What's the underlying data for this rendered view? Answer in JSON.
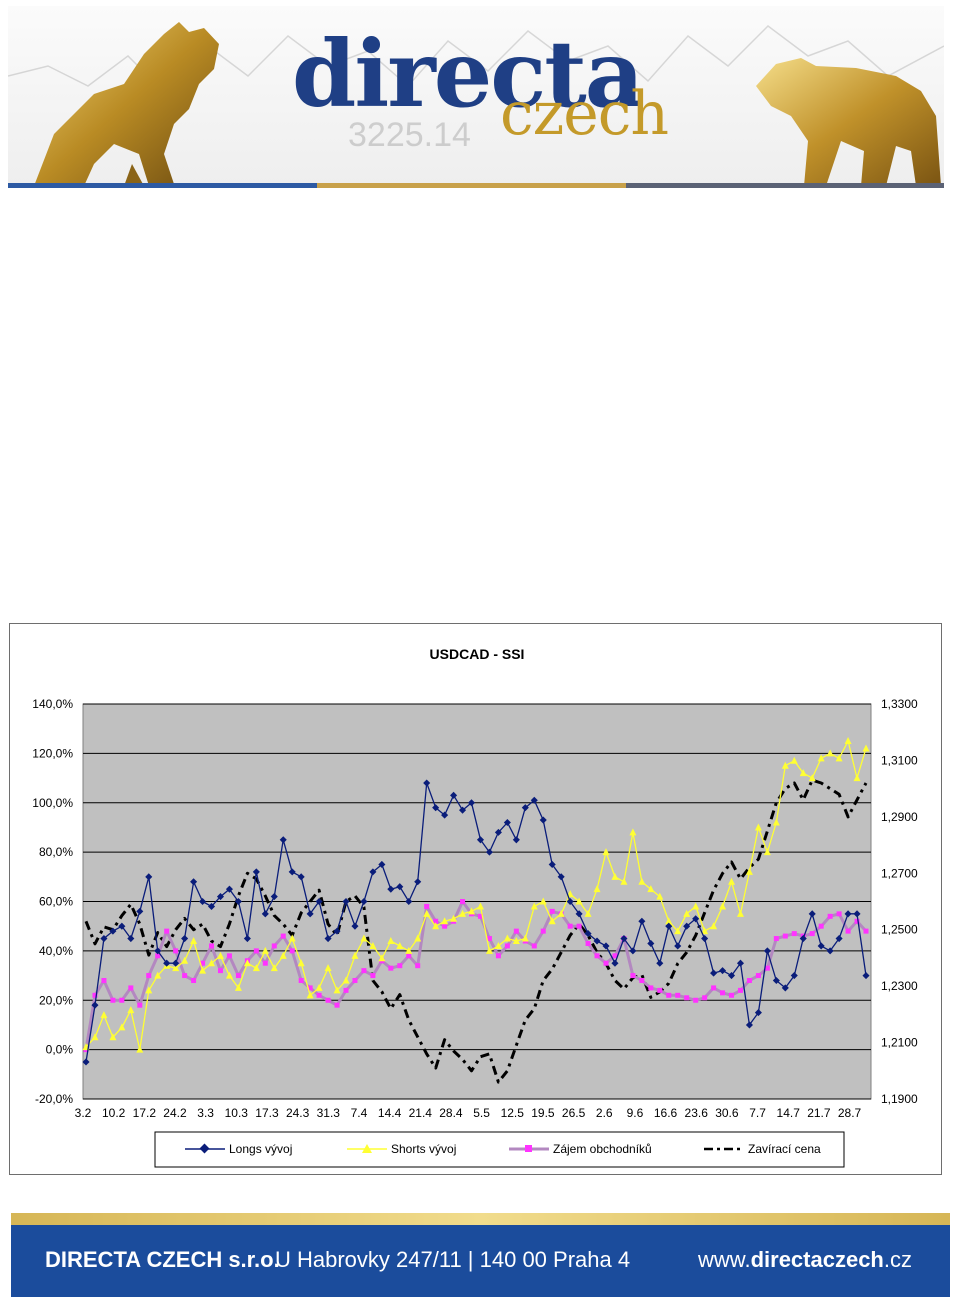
{
  "header": {
    "brand_top": "directa",
    "brand_bottom": "czech",
    "ticker_value": "3225.14"
  },
  "colors": {
    "brand_blue": "#1f3f85",
    "brand_gold": "#c49a2a",
    "footer_blue": "#1b4c9c",
    "plot_bg": "#c0c0c0",
    "longs": "#0a1d7a",
    "shorts": "#ffff33",
    "interest": "#ff33ff",
    "close": "#000000"
  },
  "chart_data": {
    "type": "line",
    "title": "USDCAD - SSI",
    "xlabel": "",
    "ylabel": "",
    "grid": true,
    "legend_position": "bottom",
    "y_left": {
      "ylim": [
        -20,
        140
      ],
      "ticks": [
        "-20,0%",
        "0,0%",
        "20,0%",
        "40,0%",
        "60,0%",
        "80,0%",
        "100,0%",
        "120,0%",
        "140,0%"
      ]
    },
    "y_right": {
      "ylim": [
        1.19,
        1.33
      ],
      "ticks": [
        "1,1900",
        "1,2100",
        "1,2300",
        "1,2500",
        "1,2700",
        "1,2900",
        "1,3100",
        "1,3300"
      ]
    },
    "x_tick_labels": [
      "3.2",
      "10.2",
      "17.2",
      "24.2",
      "3.3",
      "10.3",
      "17.3",
      "24.3",
      "31.3",
      "7.4",
      "14.4",
      "21.4",
      "28.4",
      "5.5",
      "12.5",
      "19.5",
      "26.5",
      "2.6",
      "9.6",
      "16.6",
      "23.6",
      "30.6",
      "7.7",
      "14.7",
      "21.7",
      "28.7"
    ],
    "series": [
      {
        "name": "Longs vývoj",
        "axis": "left",
        "marker": "diamond",
        "values": [
          -5,
          18,
          45,
          48,
          50,
          45,
          56,
          70,
          40,
          35,
          35,
          45,
          68,
          60,
          58,
          62,
          65,
          60,
          45,
          72,
          55,
          62,
          85,
          72,
          70,
          55,
          60,
          45,
          48,
          60,
          50,
          60,
          72,
          75,
          65,
          66,
          60,
          68,
          108,
          98,
          95,
          103,
          97,
          100,
          85,
          80,
          88,
          92,
          85,
          98,
          101,
          93,
          75,
          70,
          60,
          55,
          47,
          44,
          42,
          35,
          45,
          40,
          52,
          43,
          35,
          50,
          42,
          50,
          53,
          45,
          31,
          32,
          30,
          35,
          10,
          15,
          40,
          28,
          25,
          30,
          45,
          55,
          42,
          40,
          45,
          55,
          55,
          30
        ]
      },
      {
        "name": "Shorts vývoj",
        "axis": "left",
        "marker": "triangle",
        "values": [
          1,
          5,
          14,
          5,
          9,
          16,
          0,
          24,
          30,
          34,
          33,
          36,
          44,
          32,
          35,
          38,
          30,
          25,
          35,
          33,
          40,
          33,
          38,
          45,
          35,
          22,
          25,
          33,
          24,
          28,
          38,
          45,
          42,
          37,
          44,
          42,
          40,
          45,
          55,
          50,
          52,
          53,
          55,
          56,
          58,
          40,
          42,
          45,
          44,
          45,
          58,
          60,
          52,
          55,
          63,
          60,
          55,
          65,
          80,
          70,
          68,
          88,
          68,
          65,
          62,
          52,
          48,
          55,
          58,
          48,
          50,
          58,
          68,
          55,
          72,
          90,
          80,
          92,
          115,
          117,
          112,
          110,
          118,
          120,
          118,
          125,
          110,
          122
        ]
      },
      {
        "name": "Zájem obchodníků",
        "axis": "left",
        "marker": "square",
        "values": [
          0,
          22,
          28,
          20,
          20,
          25,
          18,
          30,
          38,
          48,
          40,
          30,
          28,
          35,
          42,
          32,
          38,
          30,
          36,
          40,
          35,
          42,
          46,
          40,
          28,
          25,
          22,
          20,
          18,
          24,
          28,
          32,
          30,
          36,
          33,
          34,
          38,
          34,
          58,
          52,
          50,
          52,
          60,
          55,
          54,
          45,
          38,
          42,
          48,
          44,
          42,
          48,
          56,
          55,
          50,
          50,
          43,
          38,
          35,
          38,
          45,
          30,
          28,
          25,
          24,
          22,
          22,
          21,
          20,
          21,
          25,
          23,
          22,
          24,
          28,
          30,
          33,
          45,
          46,
          47,
          46,
          47,
          50,
          54,
          55,
          48,
          52,
          48
        ]
      },
      {
        "name": "Zavírací cena",
        "axis": "right",
        "marker": "dash",
        "values": [
          1.253,
          1.245,
          1.251,
          1.25,
          1.255,
          1.259,
          1.252,
          1.241,
          1.249,
          1.244,
          1.25,
          1.254,
          1.25,
          1.252,
          1.246,
          1.244,
          1.252,
          1.262,
          1.27,
          1.268,
          1.262,
          1.255,
          1.252,
          1.248,
          1.256,
          1.26,
          1.264,
          1.252,
          1.248,
          1.26,
          1.262,
          1.258,
          1.232,
          1.228,
          1.222,
          1.227,
          1.218,
          1.212,
          1.206,
          1.201,
          1.211,
          1.207,
          1.204,
          1.2,
          1.205,
          1.206,
          1.196,
          1.2,
          1.209,
          1.218,
          1.222,
          1.232,
          1.236,
          1.242,
          1.248,
          1.252,
          1.248,
          1.242,
          1.238,
          1.232,
          1.229,
          1.233,
          1.234,
          1.226,
          1.228,
          1.231,
          1.238,
          1.242,
          1.248,
          1.256,
          1.264,
          1.27,
          1.274,
          1.268,
          1.272,
          1.275,
          1.285,
          1.295,
          1.3,
          1.302,
          1.296,
          1.303,
          1.302,
          1.3,
          1.298,
          1.29,
          1.296,
          1.302
        ]
      }
    ]
  },
  "footer": {
    "company": "DIRECTA CZECH s.r.o.",
    "address": "U Habrovky 247/11 | 140 00 Praha 4",
    "web_prefix": "www.",
    "web_bold": "directaczech",
    "web_suffix": ".cz"
  }
}
